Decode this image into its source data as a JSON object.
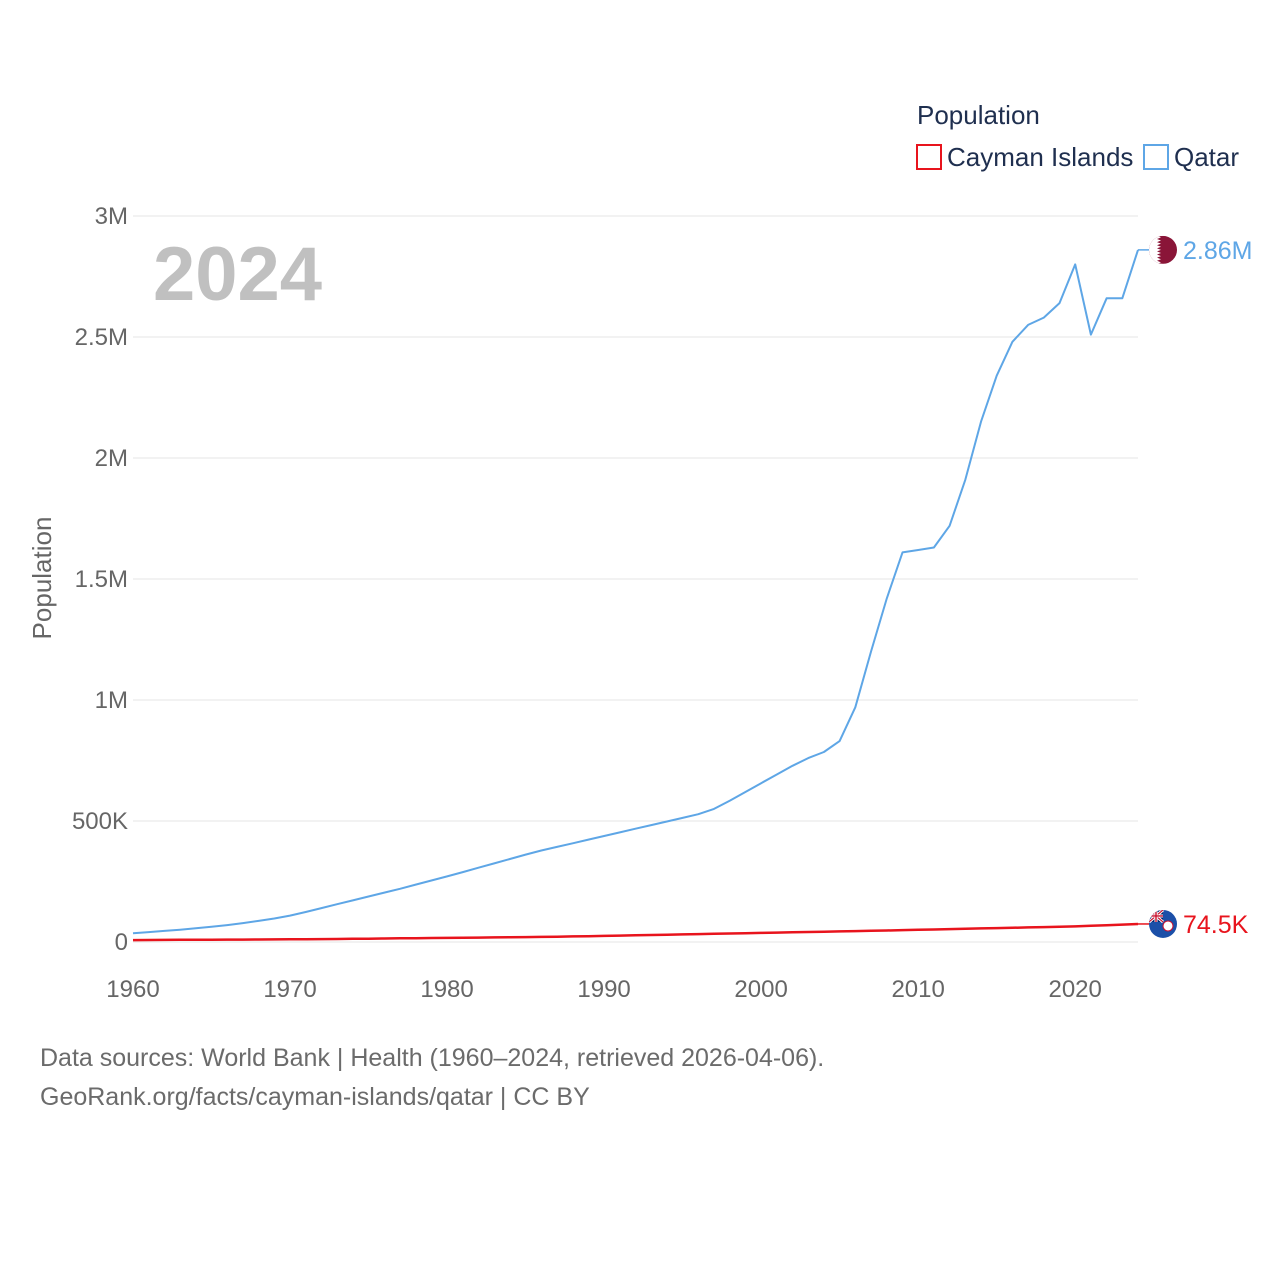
{
  "chart_data": {
    "type": "line",
    "ylabel": "Population",
    "xlabel": "",
    "year_label": "2024",
    "legend_title": "Population",
    "legend_position": "top-right",
    "x_ticks": [
      1960,
      1970,
      1980,
      1990,
      2000,
      2010,
      2020
    ],
    "x_tick_labels": [
      "1960",
      "1970",
      "1980",
      "1990",
      "2000",
      "2010",
      "2020"
    ],
    "y_ticks": [
      0,
      500000,
      1000000,
      1500000,
      2000000,
      2500000,
      3000000
    ],
    "y_tick_labels": [
      "0",
      "500K",
      "1M",
      "1.5M",
      "2M",
      "2.5M",
      "3M"
    ],
    "xlim": [
      1960,
      2024
    ],
    "ylim": [
      0,
      3000000
    ],
    "grid": true,
    "x": [
      1960,
      1961,
      1962,
      1963,
      1964,
      1965,
      1966,
      1967,
      1968,
      1969,
      1970,
      1971,
      1972,
      1973,
      1974,
      1975,
      1976,
      1977,
      1978,
      1979,
      1980,
      1981,
      1982,
      1983,
      1984,
      1985,
      1986,
      1987,
      1988,
      1989,
      1990,
      1991,
      1992,
      1993,
      1994,
      1995,
      1996,
      1997,
      1998,
      1999,
      2000,
      2001,
      2002,
      2003,
      2004,
      2005,
      2006,
      2007,
      2008,
      2009,
      2010,
      2011,
      2012,
      2013,
      2014,
      2015,
      2016,
      2017,
      2018,
      2019,
      2020,
      2021,
      2022,
      2023,
      2024
    ],
    "series": [
      {
        "name": "Cayman Islands",
        "color": "#e8141d",
        "end_label": "74.5K",
        "flag_icon": "cayman-islands-flag-icon",
        "values": [
          8000,
          8300,
          8600,
          8900,
          9200,
          9500,
          9800,
          10100,
          10400,
          10700,
          11000,
          11500,
          12000,
          12600,
          13200,
          13800,
          14500,
          15200,
          15900,
          16500,
          17000,
          17600,
          18200,
          18900,
          19600,
          20300,
          21100,
          22000,
          23000,
          24100,
          25300,
          26500,
          27700,
          28900,
          30100,
          31300,
          32500,
          33700,
          35000,
          36300,
          37600,
          38800,
          40000,
          41200,
          42400,
          43600,
          44900,
          46200,
          47600,
          49000,
          50400,
          51800,
          53200,
          54600,
          56000,
          57400,
          58800,
          60200,
          61600,
          63000,
          64400,
          66800,
          69300,
          71900,
          74500
        ]
      },
      {
        "name": "Qatar",
        "color": "#5ea6e6",
        "end_label": "2.86M",
        "flag_icon": "qatar-flag-icon",
        "values": [
          36000,
          41000,
          46000,
          51000,
          57000,
          63000,
          70000,
          78000,
          87000,
          97000,
          109000,
          124000,
          140000,
          156000,
          172000,
          188000,
          204000,
          220000,
          237000,
          254000,
          271000,
          289000,
          307000,
          325000,
          343000,
          361000,
          378000,
          393000,
          408000,
          423000,
          438000,
          453000,
          468000,
          483000,
          498000,
          513000,
          528000,
          550000,
          584000,
          620000,
          656000,
          692000,
          728000,
          760000,
          785000,
          830000,
          970000,
          1200000,
          1420000,
          1610000,
          1620000,
          1630000,
          1720000,
          1910000,
          2150000,
          2340000,
          2480000,
          2550000,
          2580000,
          2640000,
          2800000,
          2510000,
          2660000,
          2660000,
          2860000
        ]
      }
    ]
  },
  "footer": {
    "line1": "Data sources: World Bank | Health (1960–2024, retrieved 2026-04-06).",
    "line2": "GeoRank.org/facts/cayman-islands/qatar | CC BY"
  }
}
